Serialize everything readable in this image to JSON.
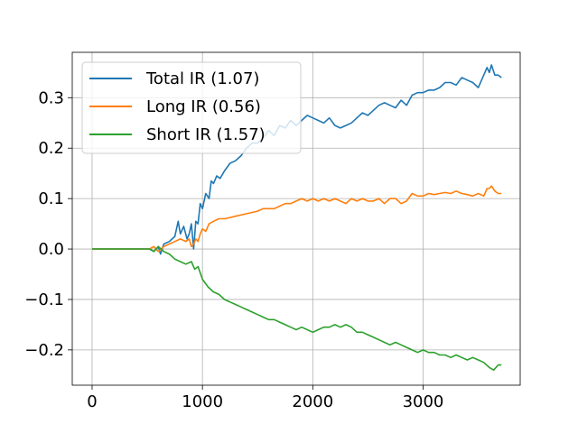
{
  "chart_data": {
    "type": "line",
    "title": "",
    "xlabel": "",
    "ylabel": "",
    "xlim": [
      -180,
      3880
    ],
    "ylim": [
      -0.27,
      0.39
    ],
    "xticks": [
      0,
      1000,
      2000,
      3000
    ],
    "xtick_labels": [
      "0",
      "1000",
      "2000",
      "3000"
    ],
    "yticks": [
      -0.2,
      -0.1,
      0.0,
      0.1,
      0.2,
      0.3
    ],
    "ytick_labels": [
      "−0.2",
      "−0.1",
      "0.0",
      "0.1",
      "0.2",
      "0.3"
    ],
    "grid": true,
    "legend_position": "upper-left",
    "series": [
      {
        "name": "Total IR (1.07)",
        "color": "#1f77b4",
        "x": [
          0,
          300,
          520,
          560,
          600,
          620,
          650,
          700,
          750,
          780,
          800,
          830,
          860,
          880,
          900,
          920,
          940,
          960,
          980,
          1000,
          1030,
          1060,
          1080,
          1100,
          1130,
          1160,
          1200,
          1250,
          1300,
          1350,
          1400,
          1450,
          1500,
          1550,
          1600,
          1650,
          1700,
          1750,
          1800,
          1850,
          1900,
          1950,
          2000,
          2050,
          2100,
          2150,
          2200,
          2250,
          2300,
          2350,
          2400,
          2450,
          2500,
          2550,
          2600,
          2650,
          2700,
          2750,
          2800,
          2850,
          2900,
          2950,
          3000,
          3050,
          3100,
          3150,
          3200,
          3250,
          3300,
          3350,
          3400,
          3450,
          3500,
          3550,
          3580,
          3600,
          3620,
          3650,
          3680,
          3710
        ],
        "values": [
          0.0,
          0.0,
          0.0,
          -0.005,
          0.005,
          -0.01,
          0.01,
          0.015,
          0.025,
          0.055,
          0.03,
          0.045,
          0.02,
          0.03,
          0.05,
          0.0,
          0.055,
          0.05,
          0.09,
          0.08,
          0.11,
          0.1,
          0.135,
          0.13,
          0.145,
          0.14,
          0.155,
          0.17,
          0.175,
          0.185,
          0.2,
          0.21,
          0.21,
          0.22,
          0.235,
          0.225,
          0.245,
          0.24,
          0.255,
          0.245,
          0.255,
          0.265,
          0.26,
          0.255,
          0.25,
          0.26,
          0.245,
          0.24,
          0.245,
          0.25,
          0.26,
          0.27,
          0.265,
          0.275,
          0.285,
          0.29,
          0.285,
          0.28,
          0.295,
          0.285,
          0.305,
          0.31,
          0.31,
          0.315,
          0.315,
          0.32,
          0.33,
          0.33,
          0.325,
          0.34,
          0.335,
          0.33,
          0.32,
          0.345,
          0.36,
          0.35,
          0.365,
          0.345,
          0.345,
          0.34
        ]
      },
      {
        "name": "Long IR (0.56)",
        "color": "#ff7f0e",
        "x": [
          0,
          300,
          520,
          560,
          600,
          650,
          700,
          750,
          800,
          850,
          880,
          900,
          920,
          940,
          960,
          980,
          1000,
          1030,
          1060,
          1100,
          1150,
          1200,
          1300,
          1400,
          1500,
          1550,
          1600,
          1650,
          1700,
          1750,
          1800,
          1850,
          1900,
          1950,
          2000,
          2050,
          2100,
          2150,
          2200,
          2250,
          2300,
          2350,
          2400,
          2450,
          2500,
          2550,
          2600,
          2650,
          2700,
          2750,
          2800,
          2850,
          2900,
          2950,
          3000,
          3050,
          3100,
          3150,
          3200,
          3250,
          3300,
          3350,
          3400,
          3450,
          3500,
          3550,
          3580,
          3600,
          3620,
          3650,
          3680,
          3710
        ],
        "values": [
          0.0,
          0.0,
          0.0,
          0.005,
          -0.005,
          0.005,
          0.01,
          0.015,
          0.02,
          0.015,
          0.02,
          0.005,
          0.01,
          0.02,
          0.015,
          0.03,
          0.04,
          0.035,
          0.05,
          0.055,
          0.06,
          0.06,
          0.065,
          0.07,
          0.075,
          0.08,
          0.08,
          0.08,
          0.085,
          0.09,
          0.09,
          0.095,
          0.1,
          0.095,
          0.1,
          0.095,
          0.1,
          0.095,
          0.1,
          0.095,
          0.09,
          0.1,
          0.095,
          0.1,
          0.095,
          0.095,
          0.1,
          0.09,
          0.1,
          0.1,
          0.09,
          0.095,
          0.11,
          0.105,
          0.105,
          0.11,
          0.108,
          0.11,
          0.112,
          0.11,
          0.115,
          0.11,
          0.108,
          0.105,
          0.11,
          0.105,
          0.12,
          0.12,
          0.125,
          0.115,
          0.11,
          0.11
        ]
      },
      {
        "name": "Short IR (1.57)",
        "color": "#2ca02c",
        "x": [
          0,
          300,
          520,
          560,
          600,
          650,
          700,
          750,
          800,
          850,
          900,
          930,
          960,
          1000,
          1050,
          1100,
          1150,
          1200,
          1250,
          1300,
          1350,
          1400,
          1450,
          1500,
          1550,
          1600,
          1650,
          1700,
          1750,
          1800,
          1850,
          1900,
          1950,
          2000,
          2050,
          2100,
          2150,
          2200,
          2250,
          2300,
          2350,
          2400,
          2450,
          2500,
          2550,
          2600,
          2650,
          2700,
          2750,
          2800,
          2850,
          2900,
          2950,
          3000,
          3050,
          3100,
          3150,
          3200,
          3250,
          3300,
          3350,
          3400,
          3450,
          3500,
          3550,
          3600,
          3640,
          3680,
          3710
        ],
        "values": [
          0.0,
          0.0,
          0.0,
          -0.005,
          0.005,
          -0.005,
          -0.01,
          -0.02,
          -0.025,
          -0.03,
          -0.025,
          -0.04,
          -0.035,
          -0.06,
          -0.075,
          -0.085,
          -0.09,
          -0.1,
          -0.105,
          -0.11,
          -0.115,
          -0.12,
          -0.125,
          -0.13,
          -0.135,
          -0.14,
          -0.14,
          -0.145,
          -0.15,
          -0.155,
          -0.16,
          -0.155,
          -0.16,
          -0.165,
          -0.16,
          -0.155,
          -0.155,
          -0.15,
          -0.155,
          -0.15,
          -0.155,
          -0.165,
          -0.165,
          -0.17,
          -0.175,
          -0.18,
          -0.185,
          -0.19,
          -0.185,
          -0.19,
          -0.195,
          -0.2,
          -0.205,
          -0.2,
          -0.205,
          -0.205,
          -0.21,
          -0.21,
          -0.215,
          -0.21,
          -0.215,
          -0.22,
          -0.215,
          -0.22,
          -0.225,
          -0.235,
          -0.24,
          -0.23,
          -0.23
        ]
      }
    ]
  }
}
